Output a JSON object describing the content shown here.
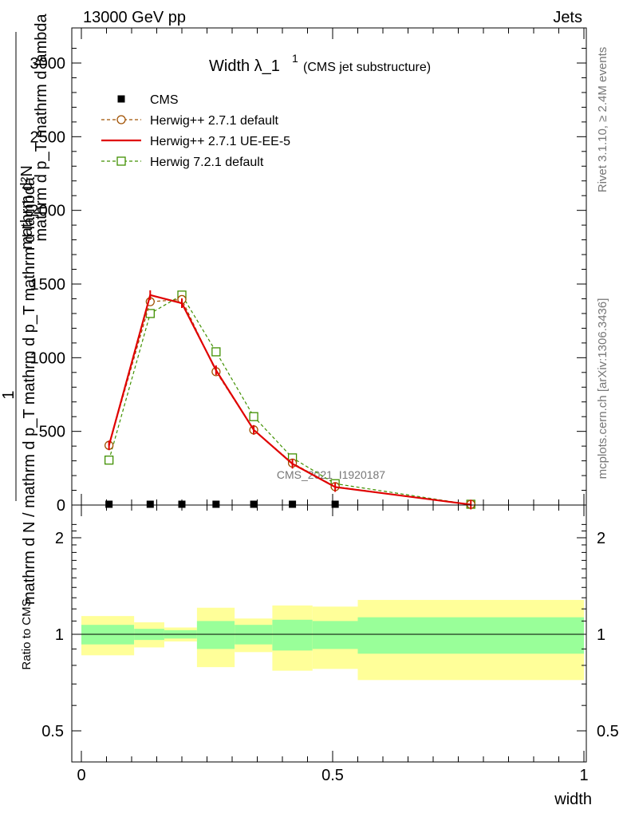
{
  "header": {
    "left": "13000 GeV pp",
    "right": "Jets"
  },
  "side_labels": {
    "rivet": "Rivet 3.1.10, ≥ 2.4M events",
    "mcplots": "mcplots.cern.ch [arXiv:1306.3436]"
  },
  "watermark": "CMS_2021_I1920187",
  "chart_data": [
    {
      "type": "line",
      "title_main": "Width λ_1",
      "title_sup": "1",
      "title_sub": "(CMS jet substructure)",
      "ylabel_parts": {
        "one": "1",
        "lower": "mathrm d N / mathrm d p_T mathrm d p_T mathrm d lambda",
        "upper": "mathrm d²N",
        "upper_lower": "mathrm d p_T mathrm d lambda"
      },
      "xlim": [
        0,
        1
      ],
      "ylim": [
        0,
        3200
      ],
      "yticks": [
        0,
        500,
        1000,
        1500,
        2000,
        2500,
        3000
      ],
      "ytick_labels": [
        "0",
        "500",
        "1000",
        "1500",
        "2000",
        "2500",
        "3000"
      ],
      "legend_position": "top-left",
      "series": [
        {
          "name": "CMS",
          "marker": "filled-square",
          "color": "#000000",
          "x": [
            0.055,
            0.137,
            0.2,
            0.268,
            0.343,
            0.42,
            0.505
          ],
          "y": [
            0,
            0,
            0,
            0,
            0,
            0,
            0
          ]
        },
        {
          "name": "Herwig++ 2.7.1 default",
          "marker": "open-circle",
          "style": "dashed",
          "color": "#a05000",
          "x": [
            0.055,
            0.137,
            0.2,
            0.268,
            0.343,
            0.42,
            0.505,
            0.775
          ],
          "y": [
            405,
            1380,
            1395,
            905,
            510,
            285,
            125,
            3
          ]
        },
        {
          "name": "Herwig++ 2.7.1 UE-EE-5",
          "marker": "none",
          "style": "solid",
          "color": "#e00000",
          "x": [
            0.055,
            0.137,
            0.2,
            0.268,
            0.343,
            0.42,
            0.505,
            0.775
          ],
          "y": [
            405,
            1425,
            1370,
            915,
            510,
            280,
            122,
            3
          ]
        },
        {
          "name": "Herwig 7.2.1 default",
          "marker": "open-square",
          "style": "dashed",
          "color": "#409000",
          "x": [
            0.055,
            0.137,
            0.2,
            0.268,
            0.343,
            0.42,
            0.505,
            0.775
          ],
          "y": [
            305,
            1300,
            1425,
            1040,
            600,
            320,
            145,
            3
          ]
        }
      ]
    },
    {
      "type": "area",
      "ylabel": "Ratio to CMS",
      "xlabel": "width",
      "xlim": [
        0,
        1
      ],
      "ylim": [
        0.4,
        2.3
      ],
      "xticks": [
        0,
        0.5,
        1
      ],
      "xtick_labels": [
        "0",
        "0.5",
        "1"
      ],
      "yticks": [
        0.5,
        1,
        2
      ],
      "ytick_labels": [
        "0.5",
        "1",
        "2"
      ],
      "band_colors": {
        "stat": "#99ff99",
        "total": "#ffff99"
      },
      "bands": [
        {
          "x0": 0.0,
          "x1": 0.105,
          "inner": [
            0.93,
            1.07
          ],
          "outer": [
            0.86,
            1.14
          ]
        },
        {
          "x0": 0.105,
          "x1": 0.165,
          "inner": [
            0.96,
            1.04
          ],
          "outer": [
            0.91,
            1.09
          ]
        },
        {
          "x0": 0.165,
          "x1": 0.23,
          "inner": [
            0.97,
            1.03
          ],
          "outer": [
            0.95,
            1.05
          ]
        },
        {
          "x0": 0.23,
          "x1": 0.305,
          "inner": [
            0.9,
            1.1
          ],
          "outer": [
            0.79,
            1.21
          ]
        },
        {
          "x0": 0.305,
          "x1": 0.38,
          "inner": [
            0.93,
            1.07
          ],
          "outer": [
            0.88,
            1.12
          ]
        },
        {
          "x0": 0.38,
          "x1": 0.46,
          "inner": [
            0.89,
            1.11
          ],
          "outer": [
            0.77,
            1.23
          ]
        },
        {
          "x0": 0.46,
          "x1": 0.55,
          "inner": [
            0.9,
            1.1
          ],
          "outer": [
            0.78,
            1.22
          ]
        },
        {
          "x0": 0.55,
          "x1": 1.0,
          "inner": [
            0.87,
            1.13
          ],
          "outer": [
            0.72,
            1.28
          ]
        }
      ]
    }
  ]
}
